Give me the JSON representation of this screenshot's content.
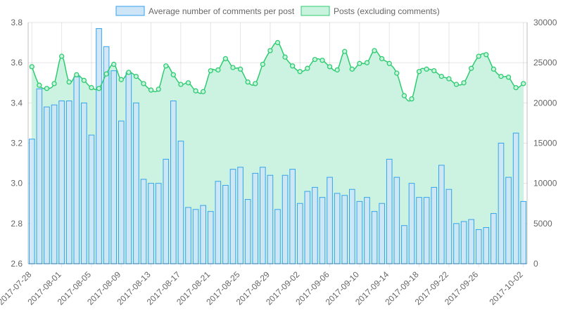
{
  "chart_data": {
    "type": "bar",
    "legend_position": "top",
    "grid": true,
    "x": [
      "2017-07-28",
      "2017-07-29",
      "2017-07-30",
      "2017-07-31",
      "2017-08-01",
      "2017-08-02",
      "2017-08-03",
      "2017-08-04",
      "2017-08-05",
      "2017-08-06",
      "2017-08-07",
      "2017-08-08",
      "2017-08-09",
      "2017-08-10",
      "2017-08-11",
      "2017-08-12",
      "2017-08-13",
      "2017-08-14",
      "2017-08-15",
      "2017-08-16",
      "2017-08-17",
      "2017-08-18",
      "2017-08-19",
      "2017-08-20",
      "2017-08-21",
      "2017-08-22",
      "2017-08-23",
      "2017-08-24",
      "2017-08-25",
      "2017-08-26",
      "2017-08-27",
      "2017-08-28",
      "2017-08-29",
      "2017-08-30",
      "2017-08-31",
      "2017-09-01",
      "2017-09-02",
      "2017-09-03",
      "2017-09-04",
      "2017-09-05",
      "2017-09-06",
      "2017-09-07",
      "2017-09-08",
      "2017-09-09",
      "2017-09-10",
      "2017-09-11",
      "2017-09-12",
      "2017-09-13",
      "2017-09-14",
      "2017-09-15",
      "2017-09-16",
      "2017-09-17",
      "2017-09-18",
      "2017-09-19",
      "2017-09-20",
      "2017-09-21",
      "2017-09-22",
      "2017-09-23",
      "2017-09-24",
      "2017-09-25",
      "2017-09-26",
      "2017-09-27",
      "2017-09-28",
      "2017-09-29",
      "2017-09-30",
      "2017-10-01",
      "2017-10-02"
    ],
    "x_tick_labels": [
      "2017-07-28",
      "2017-08-01",
      "2017-08-05",
      "2017-08-09",
      "2017-08-13",
      "2017-08-17",
      "2017-08-21",
      "2017-08-25",
      "2017-08-29",
      "2017-09-02",
      "2017-09-06",
      "2017-09-10",
      "2017-09-14",
      "2017-09-18",
      "2017-09-22",
      "2017-09-26",
      "2017-10-02"
    ],
    "y_left": {
      "min": 2.6,
      "max": 3.8,
      "ticks": [
        "2.6",
        "2.8",
        "3.0",
        "3.2",
        "3.4",
        "3.6",
        "3.8"
      ]
    },
    "y_right": {
      "min": 0,
      "max": 30000,
      "ticks": [
        "0",
        "5000",
        "10000",
        "15000",
        "20000",
        "25000",
        "30000"
      ]
    },
    "series": [
      {
        "name": "Average number of comments per post",
        "type": "bar",
        "axis": "left",
        "color": "#36a2eb",
        "fill": "#cde5f7",
        "values": [
          3.22,
          3.47,
          3.38,
          3.39,
          3.41,
          3.41,
          3.53,
          3.4,
          3.24,
          3.77,
          3.68,
          3.56,
          3.31,
          3.55,
          3.4,
          3.02,
          3.0,
          3.0,
          3.12,
          3.41,
          3.21,
          2.88,
          2.87,
          2.89,
          2.86,
          3.01,
          2.99,
          3.07,
          3.08,
          2.92,
          3.05,
          3.08,
          3.04,
          2.87,
          3.04,
          3.07,
          2.9,
          2.96,
          2.98,
          2.93,
          3.03,
          2.95,
          2.94,
          2.97,
          2.91,
          2.93,
          2.86,
          2.9,
          3.12,
          3.03,
          2.79,
          3.0,
          2.93,
          2.93,
          2.98,
          3.09,
          2.97,
          2.8,
          2.81,
          2.82,
          2.77,
          2.78,
          2.85,
          3.2,
          3.03,
          3.25,
          2.91
        ]
      },
      {
        "name": "Posts (excluding comments)",
        "type": "area",
        "axis": "right",
        "color": "#2ecc71",
        "fill": "#c9f2df",
        "values": [
          24500,
          22200,
          21800,
          22400,
          25800,
          22600,
          23500,
          22800,
          21900,
          21800,
          23600,
          24800,
          22900,
          23800,
          23300,
          22400,
          21600,
          21700,
          24600,
          23500,
          22300,
          22500,
          21500,
          21400,
          24000,
          24100,
          25500,
          24400,
          24200,
          22600,
          22400,
          24800,
          26500,
          27500,
          25700,
          24600,
          23900,
          24300,
          25400,
          25300,
          24500,
          24100,
          26400,
          24200,
          24900,
          25000,
          26500,
          25500,
          24900,
          23700,
          20900,
          20500,
          23900,
          24200,
          24000,
          23300,
          23000,
          22300,
          22500,
          24300,
          25800,
          26000,
          24200,
          23300,
          23200,
          21900,
          22400
        ]
      }
    ]
  }
}
